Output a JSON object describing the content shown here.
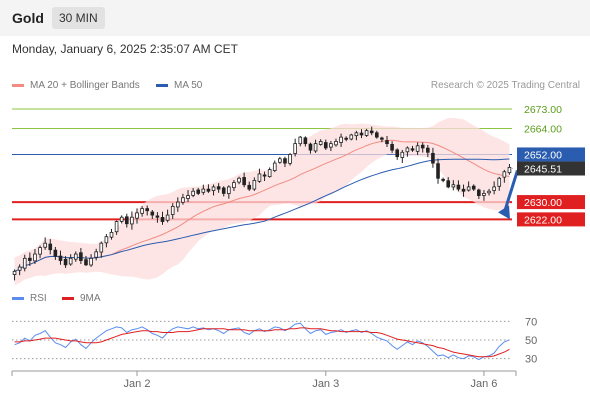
{
  "header": {
    "title": "Gold",
    "timeframe": "30 MIN"
  },
  "datetime": "Monday, January 6, 2025 2:35:07 AM CET",
  "legend": {
    "ma20": {
      "label": "MA 20 + Bollinger Bands",
      "color": "#f28b82"
    },
    "ma50": {
      "label": "MA 50",
      "color": "#2a5db0"
    }
  },
  "research": "Research © 2025 Trading Central",
  "rsi_legend": {
    "rsi": {
      "label": "RSI",
      "color": "#5b8def"
    },
    "ma9": {
      "label": "9MA",
      "color": "#e02020"
    }
  },
  "chart_data": [
    {
      "type": "candlestick",
      "x_labels": [
        "Jan 2",
        "Jan 3",
        "Jan 6"
      ],
      "ylim": [
        2594,
        2679
      ],
      "levels": [
        {
          "value": 2673.0,
          "label": "2673.00",
          "kind": "resistance",
          "color": "#8cc63f"
        },
        {
          "value": 2664.0,
          "label": "2664.00",
          "kind": "resistance",
          "color": "#8cc63f"
        },
        {
          "value": 2652.0,
          "label": "2652.00",
          "kind": "pivot",
          "color": "#2a5db0"
        },
        {
          "value": 2645.51,
          "label": "2645.51",
          "kind": "last",
          "color": "#333333"
        },
        {
          "value": 2630.0,
          "label": "2630.00",
          "kind": "support",
          "color": "#e02020"
        },
        {
          "value": 2622.0,
          "label": "2622.00",
          "kind": "support",
          "color": "#e02020"
        }
      ],
      "close": [
        2598,
        2600,
        2604,
        2603,
        2606,
        2609,
        2611,
        2608,
        2605,
        2603,
        2601,
        2604,
        2606,
        2603,
        2601,
        2604,
        2607,
        2611,
        2614,
        2616,
        2621,
        2623,
        2620,
        2623,
        2625,
        2627,
        2626,
        2624,
        2623,
        2621,
        2624,
        2628,
        2630,
        2632,
        2633,
        2635,
        2634,
        2636,
        2635,
        2637,
        2636,
        2634,
        2637,
        2639,
        2641,
        2638,
        2636,
        2640,
        2643,
        2642,
        2645,
        2648,
        2650,
        2648,
        2652,
        2657,
        2660,
        2657,
        2654,
        2657,
        2658,
        2655,
        2657,
        2658,
        2660,
        2659,
        2661,
        2662,
        2661,
        2663,
        2662,
        2660,
        2659,
        2657,
        2654,
        2651,
        2653,
        2655,
        2654,
        2656,
        2655,
        2653,
        2648,
        2641,
        2640,
        2637,
        2638,
        2636,
        2635,
        2637,
        2636,
        2633,
        2634,
        2635,
        2637,
        2641,
        2644,
        2646
      ],
      "bollinger_bands": {
        "ma_period": 20
      },
      "moving_average_50": true,
      "forecast_arrow": {
        "from_value": 2645.51,
        "to_value": 2622.0,
        "color": "#2a5db0"
      }
    },
    {
      "type": "line",
      "name": "RSI panel",
      "ylim": [
        20,
        80
      ],
      "y_ticks": [
        70,
        50,
        30
      ],
      "series": [
        {
          "name": "RSI",
          "values": [
            45,
            47,
            52,
            49,
            55,
            57,
            60,
            53,
            47,
            45,
            42,
            48,
            51,
            45,
            41,
            47,
            52,
            56,
            60,
            62,
            64,
            63,
            58,
            61,
            62,
            64,
            61,
            57,
            55,
            52,
            58,
            62,
            64,
            63,
            62,
            64,
            62,
            63,
            61,
            62,
            60,
            57,
            61,
            62,
            63,
            58,
            56,
            60,
            62,
            59,
            61,
            64,
            63,
            60,
            63,
            67,
            68,
            62,
            57,
            60,
            61,
            56,
            58,
            59,
            61,
            58,
            60,
            61,
            58,
            60,
            57,
            53,
            51,
            49,
            44,
            40,
            44,
            48,
            45,
            49,
            47,
            43,
            38,
            33,
            34,
            31,
            34,
            31,
            30,
            33,
            32,
            29,
            32,
            33,
            36,
            43,
            48,
            50
          ]
        },
        {
          "name": "9MA",
          "values": [
            48,
            48,
            49,
            49,
            50,
            51,
            52,
            52,
            52,
            51,
            50,
            49,
            49,
            48,
            47,
            47,
            47,
            48,
            50,
            52,
            54,
            56,
            57,
            58,
            59,
            60,
            60,
            59,
            59,
            58,
            58,
            58,
            59,
            59,
            59,
            60,
            61,
            62,
            62,
            62,
            62,
            62,
            61,
            61,
            61,
            61,
            60,
            60,
            60,
            60,
            60,
            61,
            61,
            61,
            62,
            62,
            63,
            63,
            62,
            62,
            62,
            61,
            60,
            60,
            59,
            59,
            59,
            59,
            59,
            59,
            58,
            58,
            57,
            55,
            53,
            51,
            50,
            49,
            48,
            47,
            46,
            45,
            44,
            42,
            41,
            39,
            37,
            36,
            35,
            34,
            33,
            32,
            32,
            32,
            33,
            35,
            37,
            40
          ]
        }
      ]
    }
  ]
}
